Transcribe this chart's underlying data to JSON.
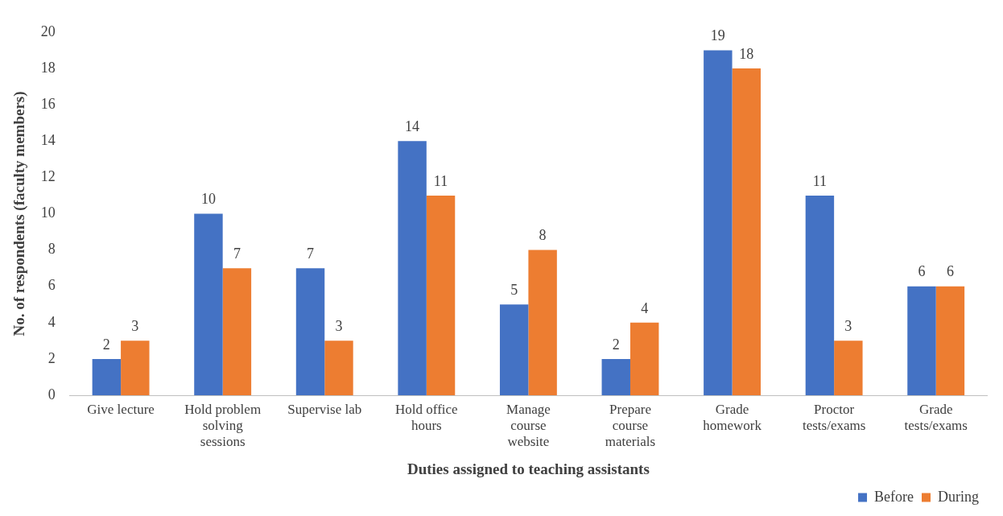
{
  "chart_data": {
    "type": "bar",
    "xlabel": "Duties assigned to teaching assistants",
    "ylabel": "No. of respondents (faculty members)",
    "categories": [
      "Give lecture",
      "Hold problem solving sessions",
      "Supervise lab",
      "Hold office hours",
      "Manage course website",
      "Prepare course materials",
      "Grade homework",
      "Proctor tests/exams",
      "Grade tests/exams"
    ],
    "series": [
      {
        "name": "Before",
        "color": "#4472c4",
        "values": [
          2,
          10,
          7,
          14,
          5,
          2,
          19,
          11,
          6
        ]
      },
      {
        "name": "During",
        "color": "#ed7d31",
        "values": [
          3,
          7,
          3,
          11,
          8,
          4,
          18,
          3,
          6
        ]
      }
    ],
    "ylim": [
      0,
      20
    ],
    "yticks": [
      0,
      2,
      4,
      6,
      8,
      10,
      12,
      14,
      16,
      18,
      20
    ],
    "grid": false,
    "legend": "bottom right",
    "data_labels": true
  }
}
